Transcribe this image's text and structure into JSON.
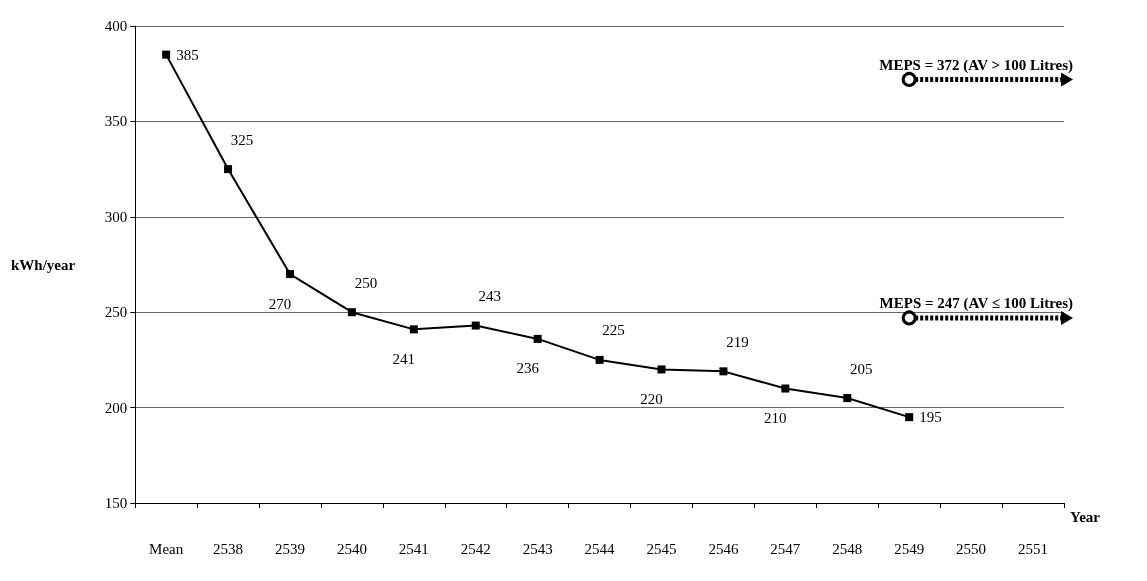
{
  "chart_data": {
    "type": "line",
    "xlabel": "Year",
    "ylabel": "kWh/year",
    "categories": [
      "Mean",
      "2538",
      "2539",
      "2540",
      "2541",
      "2542",
      "2543",
      "2544",
      "2545",
      "2546",
      "2547",
      "2548",
      "2549",
      "2550",
      "2551"
    ],
    "series": [
      {
        "color": "#000000",
        "values": [
          385,
          325,
          270,
          250,
          241,
          243,
          236,
          225,
          220,
          219,
          210,
          205,
          195,
          null,
          null
        ]
      }
    ],
    "ylim": [
      150,
      400
    ],
    "yticks": [
      150,
      200,
      250,
      300,
      350,
      400
    ],
    "grid": "y",
    "marker": "square",
    "line_style": "solid",
    "data_labels": true,
    "annotations": [
      {
        "text": "MEPS = 372 (AV > 100 Litres)",
        "x": "2549",
        "y": 372
      },
      {
        "text": "MEPS = 247 (AV ≤ 100 Litres)",
        "x": "2549",
        "y": 247
      }
    ]
  }
}
